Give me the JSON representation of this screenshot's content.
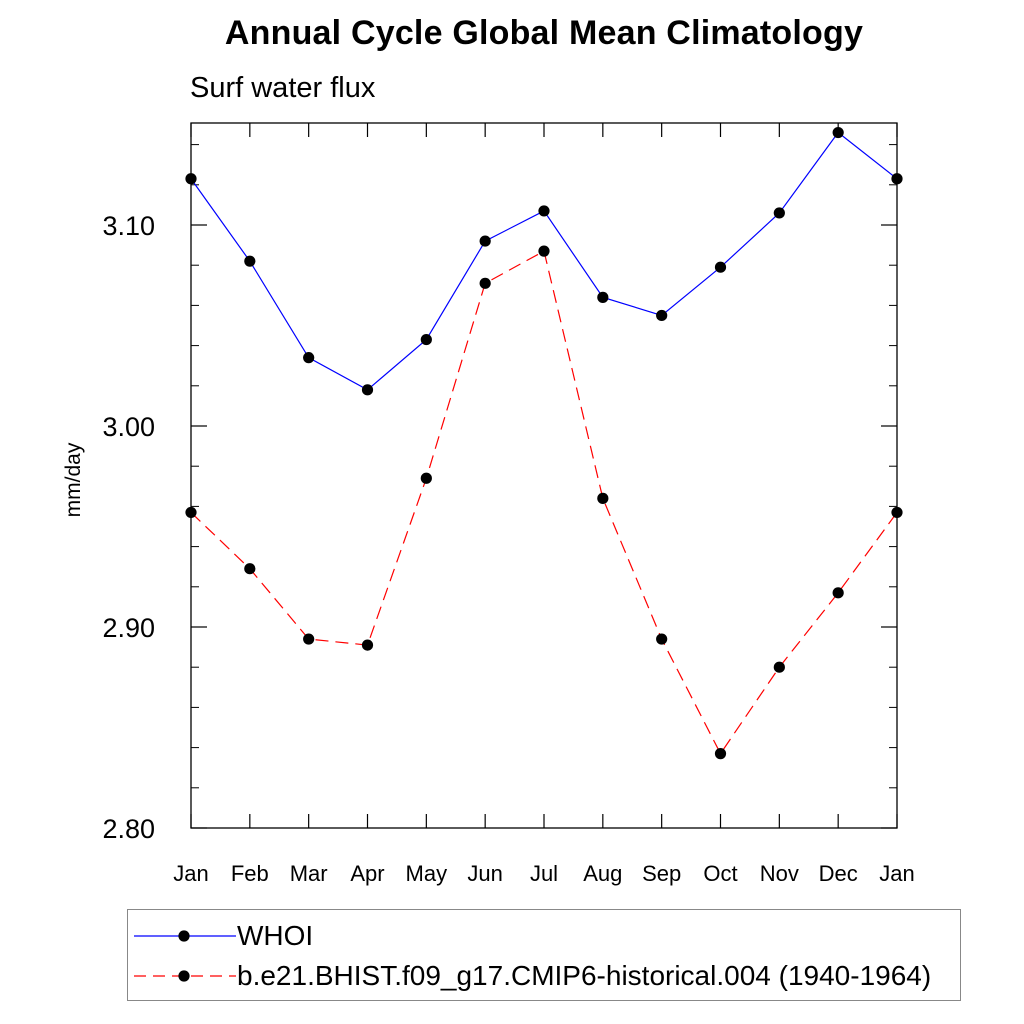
{
  "chart_data": {
    "type": "line",
    "title": "Annual Cycle Global Mean Climatology",
    "subtitle": "Surf water flux",
    "xlabel": "",
    "ylabel": "mm/day",
    "categories": [
      "Jan",
      "Feb",
      "Mar",
      "Apr",
      "May",
      "Jun",
      "Jul",
      "Aug",
      "Sep",
      "Oct",
      "Nov",
      "Dec",
      "Jan"
    ],
    "ylim": [
      2.8,
      3.15
    ],
    "yticks": [
      2.8,
      2.9,
      3.0,
      3.1
    ],
    "ytick_labels": [
      "2.80",
      "2.90",
      "3.00",
      "3.10"
    ],
    "grid": false,
    "legend_position": "bottom",
    "series": [
      {
        "name": "WHOI",
        "color": "#0000ff",
        "line_style": "solid",
        "marker": "filled-circle",
        "values": [
          3.123,
          3.082,
          3.034,
          3.018,
          3.043,
          3.092,
          3.107,
          3.064,
          3.055,
          3.079,
          3.106,
          3.146,
          3.123
        ]
      },
      {
        "name": "b.e21.BHIST.f09_g17.CMIP6-historical.004 (1940-1964)",
        "color": "#ff0000",
        "line_style": "dashed",
        "marker": "filled-circle",
        "values": [
          2.957,
          2.929,
          2.894,
          2.891,
          2.974,
          3.071,
          3.087,
          2.964,
          2.894,
          2.837,
          2.88,
          2.917,
          2.957
        ]
      }
    ]
  }
}
